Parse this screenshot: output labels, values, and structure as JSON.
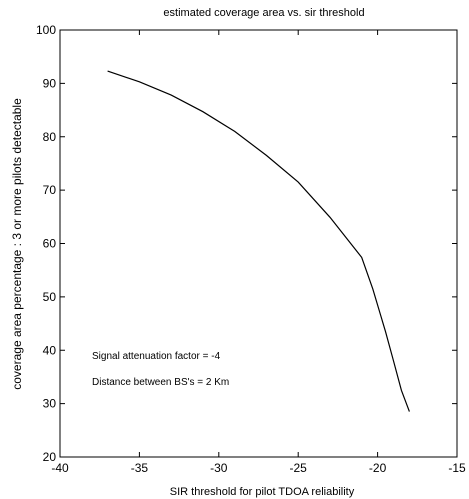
{
  "chart_data": {
    "type": "line",
    "title": "estimated coverage area vs. sir threshold",
    "xlabel": "SIR threshold for pilot TDOA reliability",
    "ylabel": "coverage area percentage : 3 or more pilots detectable",
    "xlim": [
      -40,
      -15
    ],
    "ylim": [
      20,
      100
    ],
    "x_ticks": [
      -40,
      -35,
      -30,
      -25,
      -20,
      -15
    ],
    "y_ticks": [
      20,
      30,
      40,
      50,
      60,
      70,
      80,
      90,
      100
    ],
    "x_tick_labels": [
      "-40",
      "-35",
      "-30",
      "-25",
      "-20",
      "-15"
    ],
    "y_tick_labels": [
      "20",
      "30",
      "40",
      "50",
      "60",
      "70",
      "80",
      "90",
      "100"
    ],
    "grid": false,
    "series": [
      {
        "color": "#000000",
        "x": [
          -37,
          -35,
          -33,
          -31,
          -29,
          -27,
          -25,
          -23,
          -21,
          -20.3,
          -19.5,
          -19,
          -18.5,
          -18
        ],
        "y": [
          92.3,
          90.3,
          87.8,
          84.7,
          81.0,
          76.5,
          71.5,
          64.9,
          57.4,
          51.5,
          43.5,
          38.0,
          32.5,
          28.5
        ]
      }
    ],
    "annotations": [
      "Signal attenuation factor = -4",
      "Distance between BS's = 2 Km"
    ]
  }
}
